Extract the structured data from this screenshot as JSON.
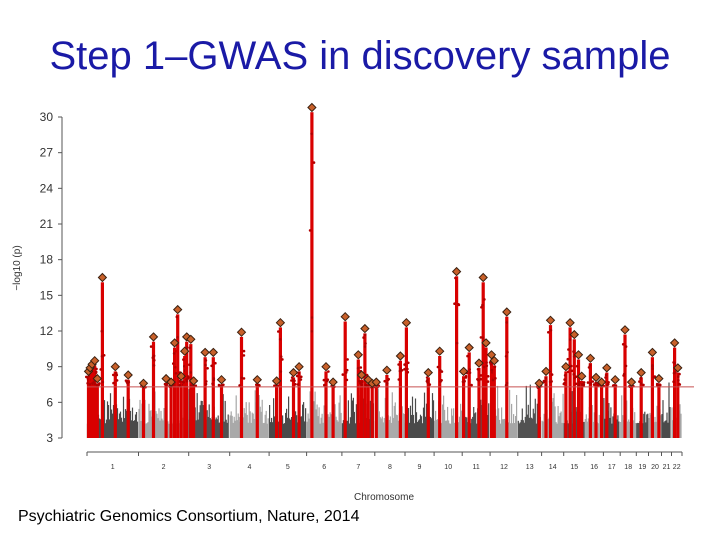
{
  "slide": {
    "title": "Step 1–GWAS in discovery sample",
    "caption": "Psychiatric Genomics Consortium, Nature, 2014"
  },
  "chart_data": {
    "type": "scatter",
    "subtype": "manhattan",
    "title": "",
    "xlabel": "Chromosome",
    "ylabel": "−log10 (p)",
    "ylim": [
      3,
      31
    ],
    "yticks": [
      3,
      6,
      9,
      12,
      15,
      18,
      21,
      24,
      27,
      30
    ],
    "significance_threshold": 7.3,
    "chromosomes": [
      "1",
      "2",
      "3",
      "4",
      "5",
      "6",
      "7",
      "8",
      "9",
      "10",
      "11",
      "12",
      "13",
      "14",
      "15",
      "16",
      "17",
      "18",
      "19",
      "20",
      "21",
      "22"
    ],
    "chromosome_lengths": [
      249,
      243,
      198,
      191,
      181,
      171,
      159,
      146,
      141,
      136,
      135,
      134,
      115,
      107,
      102,
      90,
      81,
      78,
      59,
      63,
      48,
      51
    ],
    "colors": {
      "odd_chrom": "#4a4a4a",
      "even_chrom": "#a6a6a6",
      "significant": "#d90000",
      "lead_marker": "#c8602a",
      "threshold_line": "#c85050"
    },
    "significant_loci": [
      {
        "chrom": "1",
        "pos": 0.03,
        "peak": 8.6
      },
      {
        "chrom": "1",
        "pos": 0.06,
        "peak": 8.9
      },
      {
        "chrom": "1",
        "pos": 0.1,
        "peak": 9.2
      },
      {
        "chrom": "1",
        "pos": 0.15,
        "peak": 9.5
      },
      {
        "chrom": "1",
        "pos": 0.2,
        "peak": 8.0
      },
      {
        "chrom": "1",
        "pos": 0.3,
        "peak": 16.5
      },
      {
        "chrom": "1",
        "pos": 0.55,
        "peak": 9.0
      },
      {
        "chrom": "1",
        "pos": 0.8,
        "peak": 8.3
      },
      {
        "chrom": "2",
        "pos": 0.1,
        "peak": 7.6
      },
      {
        "chrom": "2",
        "pos": 0.3,
        "peak": 11.5
      },
      {
        "chrom": "2",
        "pos": 0.55,
        "peak": 8.0
      },
      {
        "chrom": "2",
        "pos": 0.65,
        "peak": 7.7
      },
      {
        "chrom": "2",
        "pos": 0.72,
        "peak": 11.0
      },
      {
        "chrom": "2",
        "pos": 0.78,
        "peak": 13.8
      },
      {
        "chrom": "2",
        "pos": 0.85,
        "peak": 8.2
      },
      {
        "chrom": "2",
        "pos": 0.92,
        "peak": 10.3
      },
      {
        "chrom": "2",
        "pos": 0.96,
        "peak": 11.5
      },
      {
        "chrom": "3",
        "pos": 0.05,
        "peak": 11.3
      },
      {
        "chrom": "3",
        "pos": 0.12,
        "peak": 7.8
      },
      {
        "chrom": "3",
        "pos": 0.4,
        "peak": 10.2
      },
      {
        "chrom": "3",
        "pos": 0.6,
        "peak": 10.2
      },
      {
        "chrom": "3",
        "pos": 0.8,
        "peak": 7.9
      },
      {
        "chrom": "4",
        "pos": 0.3,
        "peak": 11.9
      },
      {
        "chrom": "4",
        "pos": 0.7,
        "peak": 7.9
      },
      {
        "chrom": "5",
        "pos": 0.2,
        "peak": 7.8
      },
      {
        "chrom": "5",
        "pos": 0.3,
        "peak": 12.7
      },
      {
        "chrom": "5",
        "pos": 0.65,
        "peak": 8.5
      },
      {
        "chrom": "5",
        "pos": 0.8,
        "peak": 9.0
      },
      {
        "chrom": "6",
        "pos": 0.15,
        "peak": 30.8
      },
      {
        "chrom": "6",
        "pos": 0.55,
        "peak": 9.0
      },
      {
        "chrom": "6",
        "pos": 0.75,
        "peak": 7.7
      },
      {
        "chrom": "7",
        "pos": 0.1,
        "peak": 13.2
      },
      {
        "chrom": "7",
        "pos": 0.5,
        "peak": 10.0
      },
      {
        "chrom": "7",
        "pos": 0.6,
        "peak": 8.3
      },
      {
        "chrom": "7",
        "pos": 0.7,
        "peak": 12.2
      },
      {
        "chrom": "7",
        "pos": 0.8,
        "peak": 7.9
      },
      {
        "chrom": "7",
        "pos": 0.92,
        "peak": 7.6
      },
      {
        "chrom": "8",
        "pos": 0.05,
        "peak": 7.7
      },
      {
        "chrom": "8",
        "pos": 0.4,
        "peak": 8.7
      },
      {
        "chrom": "8",
        "pos": 0.85,
        "peak": 9.9
      },
      {
        "chrom": "9",
        "pos": 0.05,
        "peak": 12.7
      },
      {
        "chrom": "9",
        "pos": 0.8,
        "peak": 8.5
      },
      {
        "chrom": "10",
        "pos": 0.2,
        "peak": 10.3
      },
      {
        "chrom": "10",
        "pos": 0.8,
        "peak": 17.0
      },
      {
        "chrom": "11",
        "pos": 0.05,
        "peak": 8.6
      },
      {
        "chrom": "11",
        "pos": 0.25,
        "peak": 10.6
      },
      {
        "chrom": "11",
        "pos": 0.6,
        "peak": 9.3
      },
      {
        "chrom": "11",
        "pos": 0.75,
        "peak": 16.5
      },
      {
        "chrom": "11",
        "pos": 0.85,
        "peak": 11.0
      },
      {
        "chrom": "12",
        "pos": 0.05,
        "peak": 10.0
      },
      {
        "chrom": "12",
        "pos": 0.15,
        "peak": 9.5
      },
      {
        "chrom": "12",
        "pos": 0.6,
        "peak": 13.6
      },
      {
        "chrom": "13",
        "pos": 0.9,
        "peak": 7.6
      },
      {
        "chrom": "14",
        "pos": 0.2,
        "peak": 8.6
      },
      {
        "chrom": "14",
        "pos": 0.4,
        "peak": 12.9
      },
      {
        "chrom": "15",
        "pos": 0.1,
        "peak": 9.0
      },
      {
        "chrom": "15",
        "pos": 0.3,
        "peak": 12.7
      },
      {
        "chrom": "15",
        "pos": 0.5,
        "peak": 11.7
      },
      {
        "chrom": "15",
        "pos": 0.7,
        "peak": 10.0
      },
      {
        "chrom": "15",
        "pos": 0.85,
        "peak": 8.2
      },
      {
        "chrom": "16",
        "pos": 0.3,
        "peak": 9.7
      },
      {
        "chrom": "16",
        "pos": 0.6,
        "peak": 8.1
      },
      {
        "chrom": "16",
        "pos": 0.9,
        "peak": 7.7
      },
      {
        "chrom": "17",
        "pos": 0.2,
        "peak": 8.9
      },
      {
        "chrom": "17",
        "pos": 0.7,
        "peak": 7.9
      },
      {
        "chrom": "18",
        "pos": 0.3,
        "peak": 12.1
      },
      {
        "chrom": "18",
        "pos": 0.7,
        "peak": 7.7
      },
      {
        "chrom": "19",
        "pos": 0.4,
        "peak": 8.5
      },
      {
        "chrom": "20",
        "pos": 0.3,
        "peak": 10.2
      },
      {
        "chrom": "20",
        "pos": 0.8,
        "peak": 8.0
      },
      {
        "chrom": "22",
        "pos": 0.3,
        "peak": 11.0
      },
      {
        "chrom": "22",
        "pos": 0.6,
        "peak": 8.9
      }
    ]
  }
}
